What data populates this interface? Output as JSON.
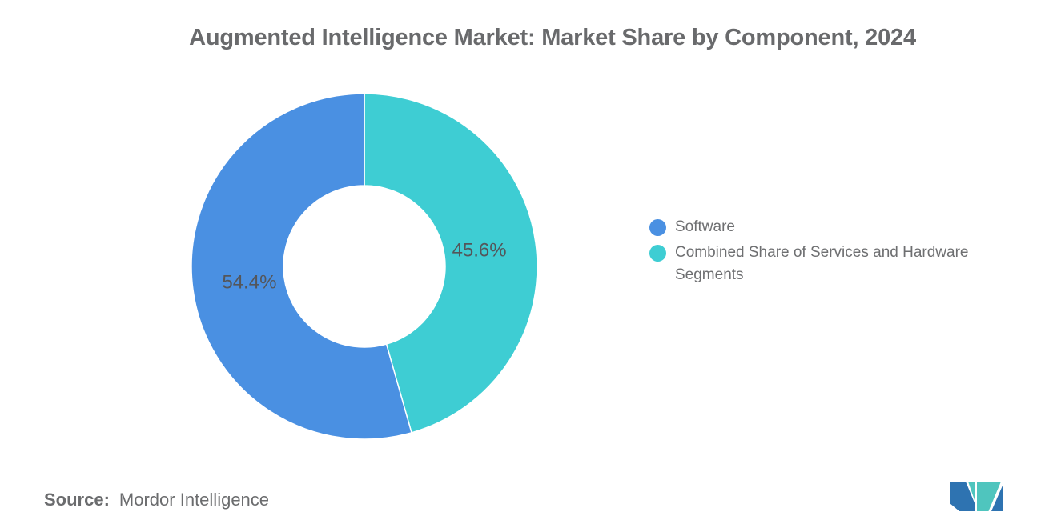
{
  "title": "Augmented Intelligence Market: Market Share by Component, 2024",
  "chart_data": {
    "type": "pie",
    "subtype": "donut",
    "title": "Augmented Intelligence Market: Market Share by Component, 2024",
    "start_angle_deg": 0,
    "direction": "clockwise",
    "donut_hole_ratio": 0.47,
    "legend_position": "right",
    "data_labels": "percent-inside",
    "slices": [
      {
        "label": "Combined Share of Services and Hardware Segments",
        "value": 45.6,
        "display_label": "45.6%",
        "color": "#3ECDD3"
      },
      {
        "label": "Software",
        "value": 54.4,
        "display_label": "54.4%",
        "color": "#4A90E2"
      }
    ]
  },
  "legend": {
    "items": [
      {
        "label": "Software",
        "color": "#4A90E2"
      },
      {
        "label": "Combined Share of Services and Hardware Segments",
        "color": "#3ECDD3"
      }
    ]
  },
  "source": {
    "prefix": "Source:",
    "text": "Mordor Intelligence"
  },
  "logo": {
    "blue": "#2E73B1",
    "teal": "#4FC5BE"
  }
}
